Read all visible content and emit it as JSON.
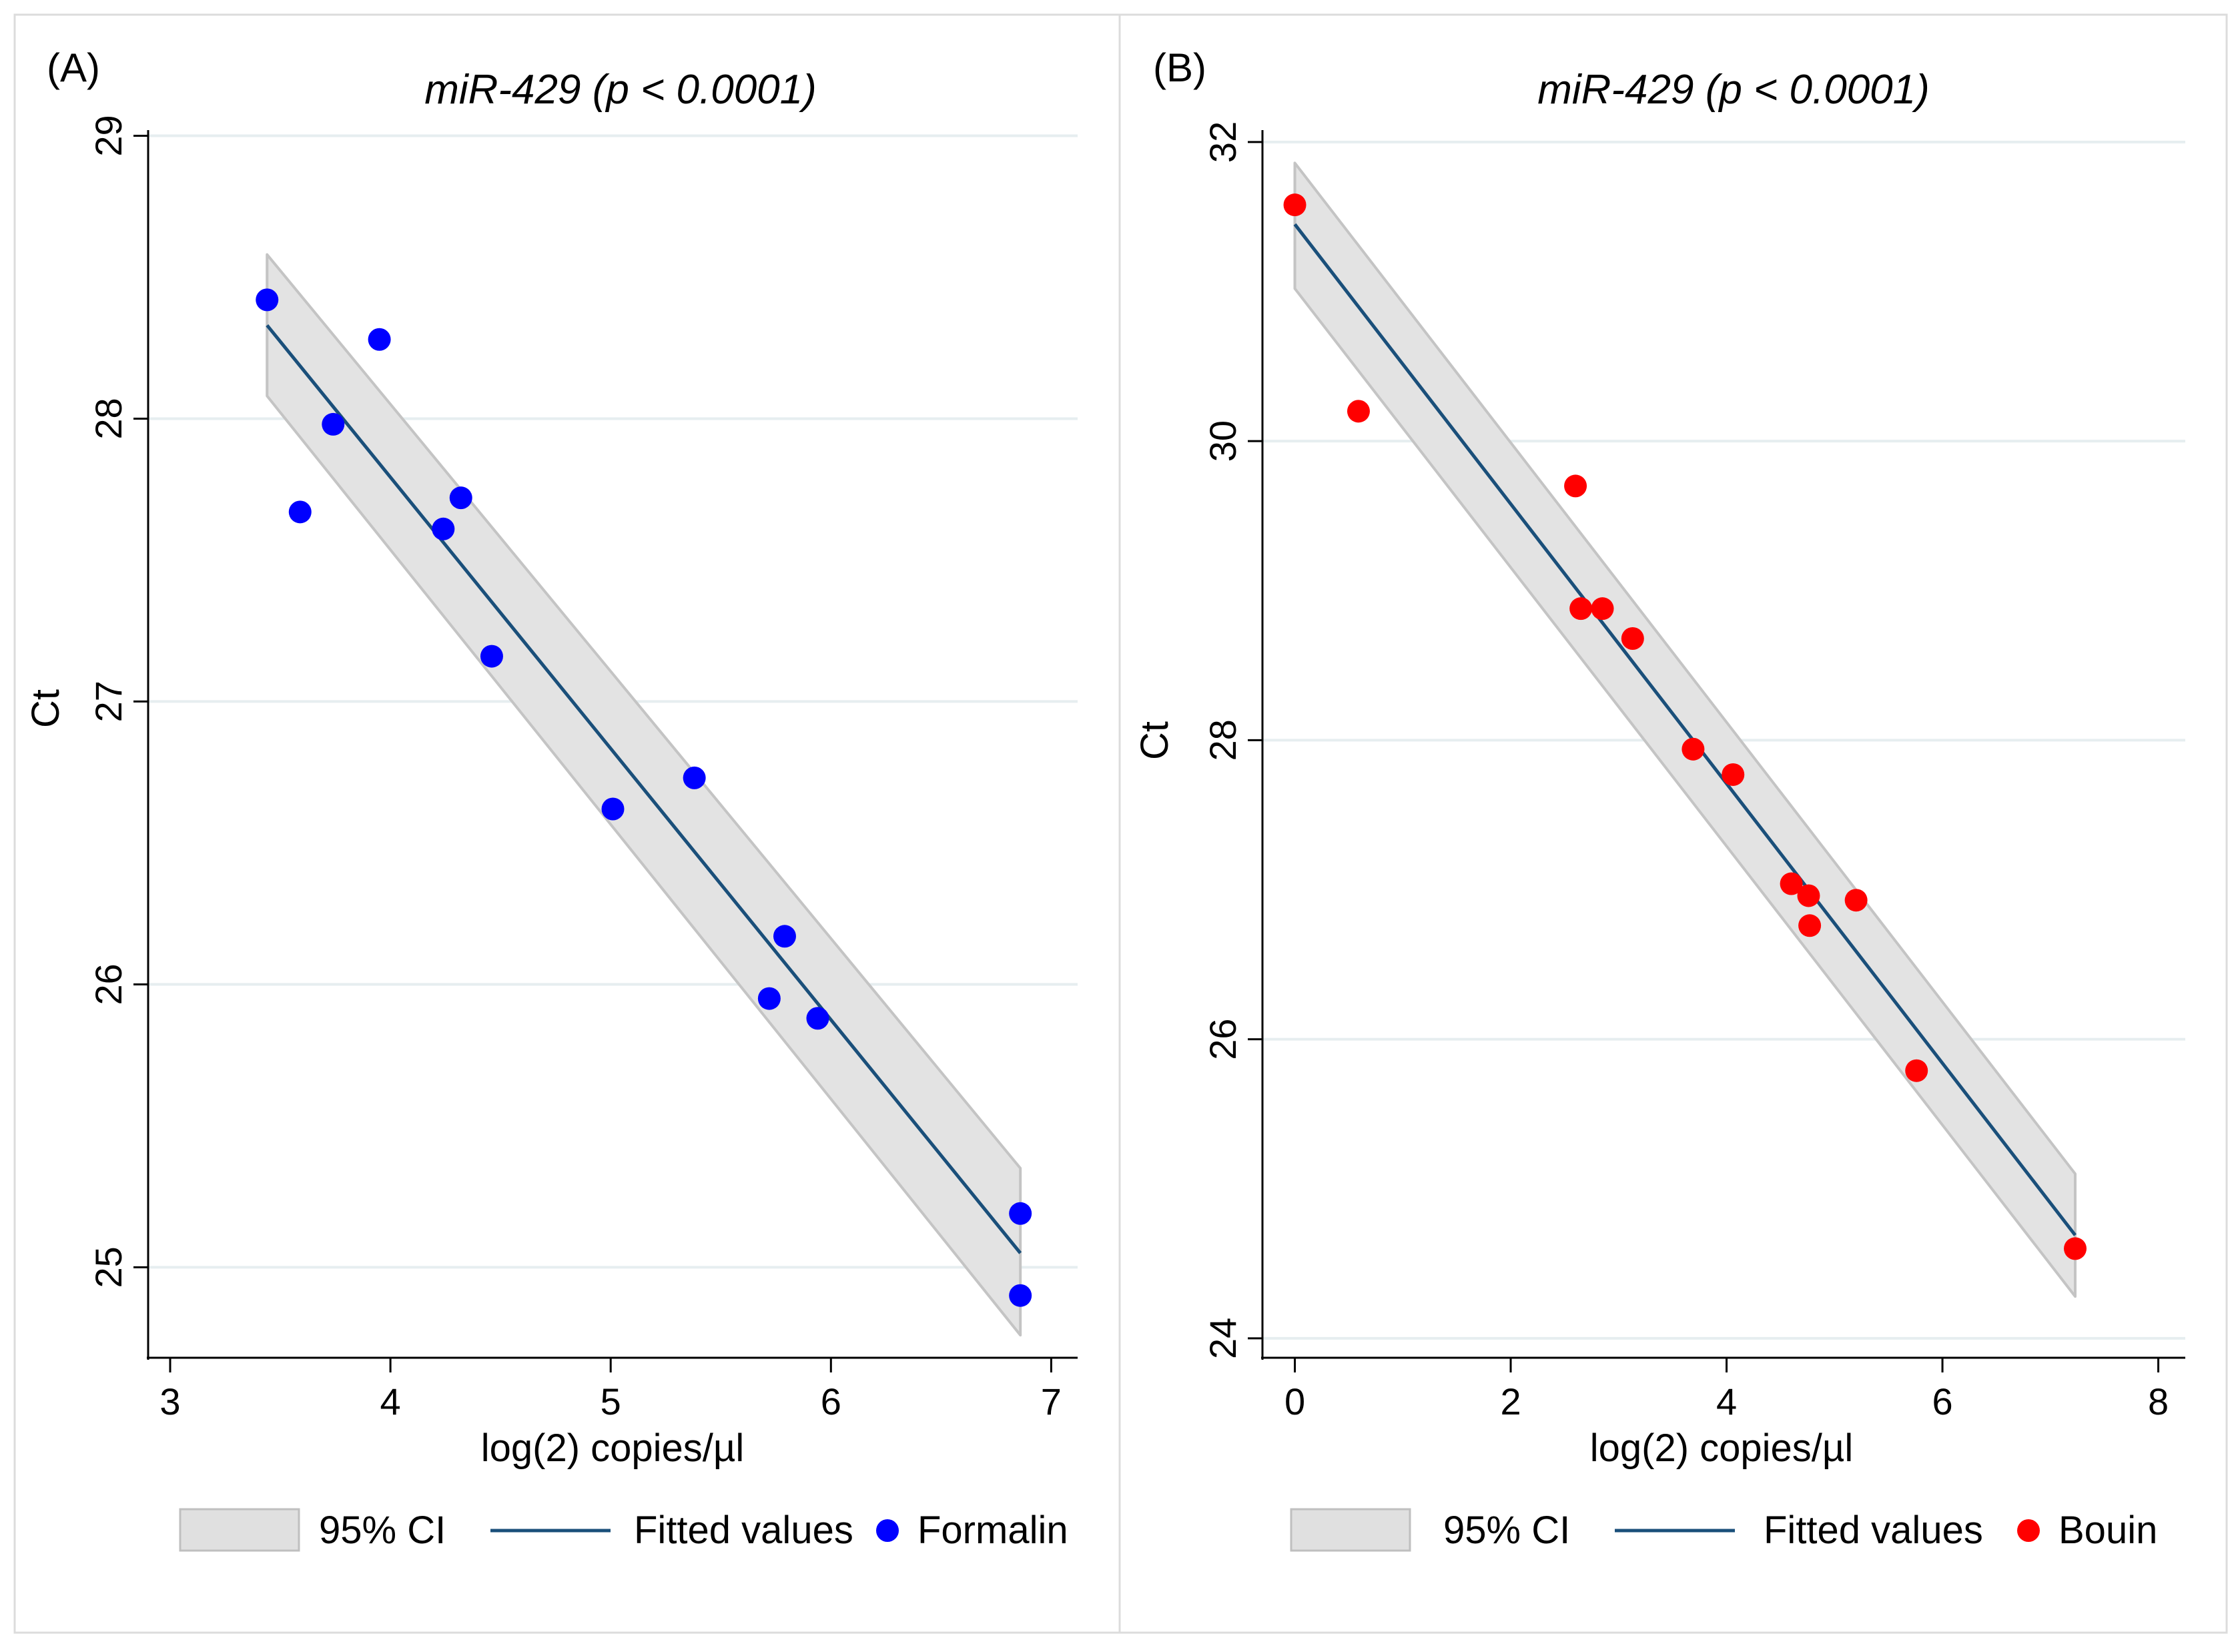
{
  "chart_data": [
    {
      "panel_label": "(A)",
      "type": "scatter",
      "title": "miR-429 (p < 0.0001)",
      "xlabel": "log(2) copies/µl",
      "ylabel": "Ct",
      "xlim": [
        2.9,
        7.12
      ],
      "ylim": [
        24.68,
        29.02
      ],
      "xticks": [
        3,
        4,
        5,
        6,
        7
      ],
      "yticks": [
        25,
        26,
        27,
        28,
        29
      ],
      "grid": true,
      "points": {
        "name": "Formalin",
        "color": "#0000ff",
        "x": [
          3.44,
          3.59,
          3.74,
          3.95,
          4.24,
          4.32,
          4.46,
          5.01,
          5.38,
          5.72,
          5.79,
          5.94,
          6.86,
          6.86
        ],
        "y": [
          28.42,
          27.67,
          27.98,
          28.28,
          27.61,
          27.72,
          27.16,
          26.62,
          26.73,
          25.95,
          26.17,
          25.88,
          25.19,
          24.9
        ]
      },
      "fit": {
        "name": "Fitted values",
        "color": "#1a4f7a",
        "x": [
          3.44,
          6.86
        ],
        "y": [
          28.33,
          25.05
        ]
      },
      "ci": {
        "name": "95% CI",
        "x": [
          3.44,
          6.86
        ],
        "upper": [
          28.58,
          25.35
        ],
        "lower": [
          28.08,
          24.76
        ]
      },
      "legend": [
        "95% CI",
        "Fitted values",
        "Formalin"
      ]
    },
    {
      "panel_label": "(B)",
      "type": "scatter",
      "title": "miR-429 (p < 0.0001)",
      "xlabel": "log(2) copies/µl",
      "ylabel": "Ct",
      "xlim": [
        -0.3,
        8.25
      ],
      "ylim": [
        23.87,
        32.08
      ],
      "xticks": [
        0,
        2,
        4,
        6,
        8
      ],
      "yticks": [
        24,
        26,
        28,
        30,
        32
      ],
      "grid": true,
      "points": {
        "name": "Bouin",
        "color": "#ff0000",
        "x": [
          0.0,
          0.59,
          2.6,
          2.65,
          2.85,
          3.13,
          3.69,
          4.06,
          4.6,
          4.76,
          4.77,
          5.2,
          5.76,
          7.23
        ],
        "y": [
          31.58,
          30.2,
          29.7,
          28.88,
          28.88,
          28.68,
          27.94,
          27.77,
          27.04,
          26.96,
          26.76,
          26.93,
          25.79,
          24.6
        ]
      },
      "fit": {
        "name": "Fitted values",
        "color": "#1a4f7a",
        "x": [
          0.0,
          7.23
        ],
        "y": [
          31.45,
          24.69
        ]
      },
      "ci": {
        "name": "95% CI",
        "x": [
          0.0,
          7.23
        ],
        "upper": [
          31.86,
          25.1
        ],
        "lower": [
          31.02,
          24.28
        ]
      },
      "legend": [
        "95% CI",
        "Fitted values",
        "Bouin"
      ]
    }
  ]
}
